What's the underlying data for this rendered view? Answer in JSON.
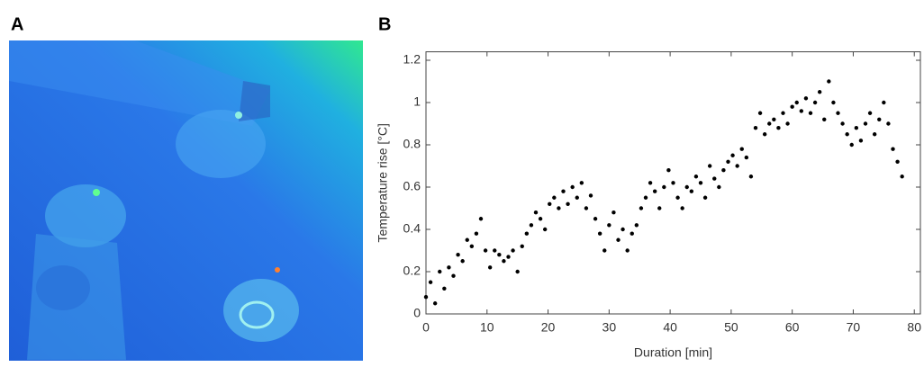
{
  "panels": [
    "A",
    "B"
  ],
  "chart_data": {
    "type": "scatter",
    "xlabel": "Duration [min]",
    "ylabel": "Temperature rise [°C]",
    "color": "#000000",
    "x": [
      0,
      0.75,
      1.5,
      2.25,
      3,
      3.75,
      4.5,
      5.25,
      6,
      6.75,
      7.5,
      8.25,
      9,
      9.75,
      10.5,
      11.25,
      12,
      12.75,
      13.5,
      14.25,
      15,
      15.75,
      16.5,
      17.25,
      18,
      18.75,
      19.5,
      20.25,
      21,
      21.75,
      22.5,
      23.25,
      24,
      24.75,
      25.5,
      26.25,
      27,
      27.75,
      28.5,
      29.25,
      30,
      30.75,
      31.5,
      32.25,
      33,
      33.75,
      34.5,
      35.25,
      36,
      36.75,
      37.5,
      38.25,
      39,
      39.75,
      40.5,
      41.25,
      42,
      42.75,
      43.5,
      44.25,
      45,
      45.75,
      46.5,
      47.25,
      48,
      48.75,
      49.5,
      50.25,
      51,
      51.75,
      52.5,
      53.25,
      54,
      54.75,
      55.5,
      56.25,
      57,
      57.75,
      58.5,
      59.25,
      60,
      60.75,
      61.5,
      62.25,
      63,
      63.75,
      64.5,
      65.25,
      66,
      66.75,
      67.5,
      68.25,
      69,
      69.75,
      70.5,
      71.25,
      72,
      72.75,
      73.5,
      74.25,
      75,
      75.75,
      76.5,
      77.25,
      78
    ],
    "values": [
      0.08,
      0.15,
      0.05,
      0.2,
      0.12,
      0.22,
      0.18,
      0.28,
      0.25,
      0.35,
      0.32,
      0.38,
      0.45,
      0.3,
      0.22,
      0.3,
      0.28,
      0.25,
      0.27,
      0.3,
      0.2,
      0.32,
      0.38,
      0.42,
      0.48,
      0.45,
      0.4,
      0.52,
      0.55,
      0.5,
      0.58,
      0.52,
      0.6,
      0.55,
      0.62,
      0.5,
      0.56,
      0.45,
      0.38,
      0.3,
      0.42,
      0.48,
      0.35,
      0.4,
      0.3,
      0.38,
      0.42,
      0.5,
      0.55,
      0.62,
      0.58,
      0.5,
      0.6,
      0.68,
      0.62,
      0.55,
      0.5,
      0.6,
      0.58,
      0.65,
      0.62,
      0.55,
      0.7,
      0.64,
      0.6,
      0.68,
      0.72,
      0.75,
      0.7,
      0.78,
      0.74,
      0.65,
      0.88,
      0.95,
      0.85,
      0.9,
      0.92,
      0.88,
      0.95,
      0.9,
      0.98,
      1.0,
      0.96,
      1.02,
      0.95,
      1.0,
      1.05,
      0.92,
      1.1,
      1.0,
      0.95,
      0.9,
      0.85,
      0.8,
      0.88,
      0.82,
      0.9,
      0.95,
      0.85,
      0.92,
      1.0,
      0.9,
      0.78,
      0.72,
      0.65
    ],
    "xlim": [
      0,
      81
    ],
    "ylim": [
      0,
      1.24
    ],
    "xticks": [
      0,
      10,
      20,
      30,
      40,
      50,
      60,
      70,
      80
    ],
    "yticks": [
      0,
      0.2,
      0.4,
      0.6,
      0.8,
      1,
      1.2
    ],
    "grid": false
  }
}
